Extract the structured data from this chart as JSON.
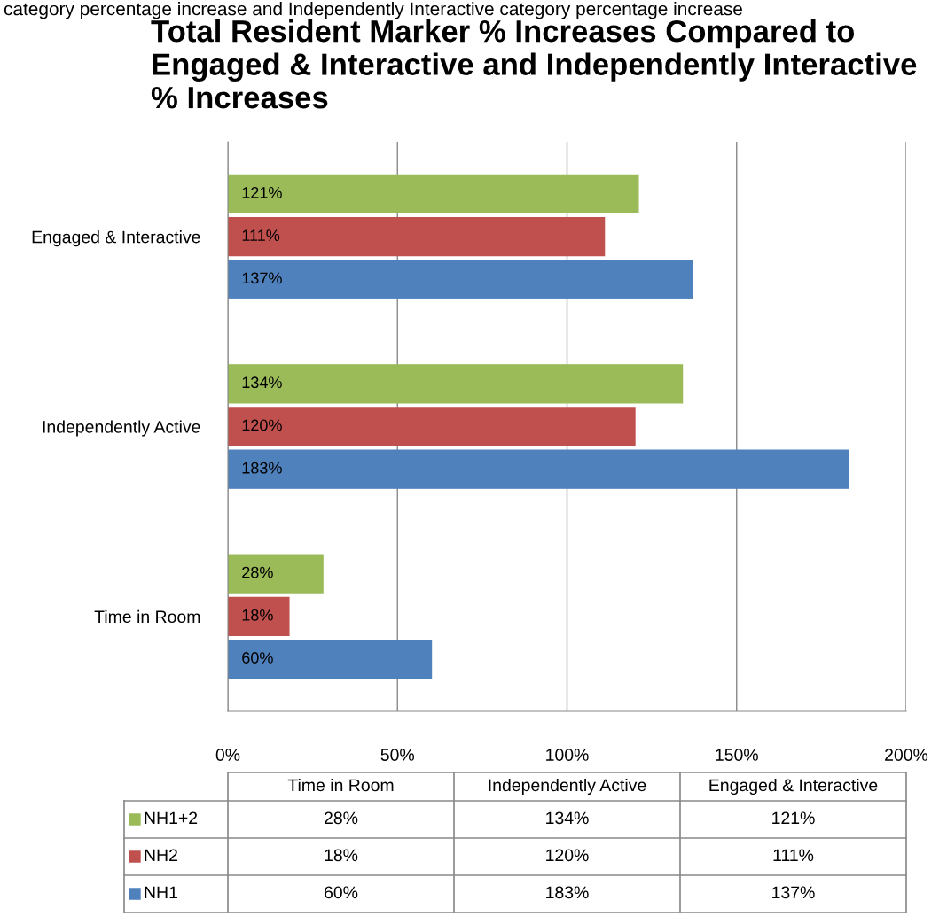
{
  "chart_data": {
    "type": "bar",
    "orientation": "horizontal",
    "title": "Total Resident Marker % Increases Compared to Engaged & Interactive and Independently Interactive % Increases",
    "annotations": [
      "category percentage increase and Independently Interactive category percentage increase"
    ],
    "categories": [
      "Engaged & Interactive",
      "Independently Active",
      "Time in Room"
    ],
    "series": [
      {
        "name": "NH1+2",
        "color": "#9bbb59",
        "values": [
          121,
          134,
          28
        ],
        "value_labels": [
          "121%",
          "134%",
          "28%"
        ]
      },
      {
        "name": "NH2",
        "color": "#c0504d",
        "values": [
          111,
          120,
          18
        ],
        "value_labels": [
          "111%",
          "120%",
          "18%"
        ]
      },
      {
        "name": "NH1",
        "color": "#4f81bd",
        "values": [
          137,
          183,
          60
        ],
        "value_labels": [
          "137%",
          "183%",
          "60%"
        ]
      }
    ],
    "xlim": [
      0,
      200
    ],
    "xticks": [
      {
        "value": 0,
        "label": "0%"
      },
      {
        "value": 50,
        "label": "50%"
      },
      {
        "value": 100,
        "label": "100%"
      },
      {
        "value": 150,
        "label": "150%"
      },
      {
        "value": 200,
        "label": "200%"
      }
    ],
    "grid": "x",
    "legend": "bottom"
  }
}
